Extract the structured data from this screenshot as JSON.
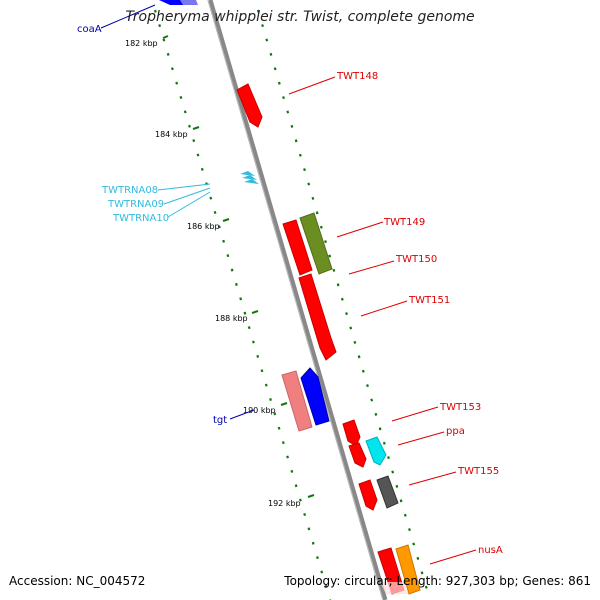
{
  "title": "Tropheryma whipplei str. Twist, complete genome",
  "footer": {
    "accession": "Accession: NC_004572",
    "stats": "Topology: circular; Length: 927,303 bp; Genes: 861"
  },
  "ruler": {
    "ticks": [
      {
        "label": "182 kbp",
        "pos_kbp": 182
      },
      {
        "label": "184 kbp",
        "pos_kbp": 184
      },
      {
        "label": "186 kbp",
        "pos_kbp": 186
      },
      {
        "label": "188 kbp",
        "pos_kbp": 188
      },
      {
        "label": "190 kbp",
        "pos_kbp": 190
      },
      {
        "label": "192 kbp",
        "pos_kbp": 192
      }
    ]
  },
  "labels": {
    "left": [
      {
        "text": "coaA",
        "color": "#0000aa"
      },
      {
        "text": "TWTRNA08",
        "color": "#33bbdd"
      },
      {
        "text": "TWTRNA09",
        "color": "#33bbdd"
      },
      {
        "text": "TWTRNA10",
        "color": "#33bbdd"
      },
      {
        "text": "tgt",
        "color": "#0000aa"
      }
    ],
    "right": [
      {
        "text": "TWT148",
        "color": "#dd0000"
      },
      {
        "text": "TWT149",
        "color": "#dd0000"
      },
      {
        "text": "TWT150",
        "color": "#dd0000"
      },
      {
        "text": "TWT151",
        "color": "#dd0000"
      },
      {
        "text": "TWT153",
        "color": "#dd0000"
      },
      {
        "text": "ppa",
        "color": "#dd0000"
      },
      {
        "text": "TWT155",
        "color": "#dd0000"
      },
      {
        "text": "nusA",
        "color": "#dd0000"
      }
    ]
  },
  "colors": {
    "backbone": "#888888",
    "gene_red": "#ff0000",
    "gene_blue": "#0000ff",
    "gene_green": "#6b8e23",
    "gene_pink": "#f08080",
    "gene_cyan": "#00e5ee",
    "gene_gray": "#555555",
    "gene_orange": "#ff9900",
    "trna": "#33bbdd",
    "ruler_dots": "#117711"
  }
}
